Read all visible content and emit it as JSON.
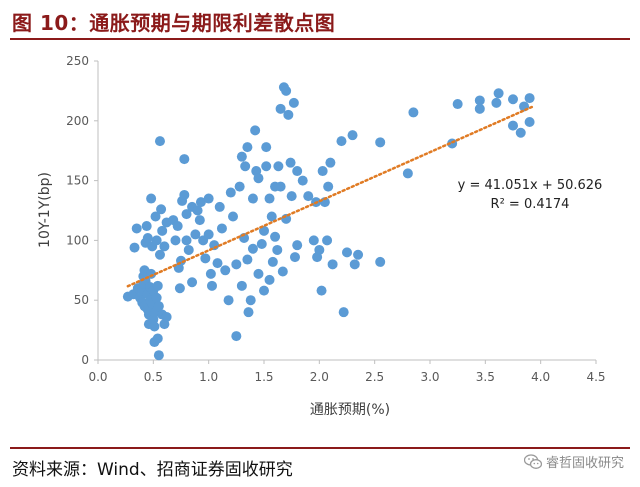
{
  "figure": {
    "title": "图 10：通胀预期与期限利差散点图",
    "source": "资料来源：Wind、招商证券固收研究",
    "watermark": "睿哲固收研究"
  },
  "colors": {
    "title": "#8b1a1a",
    "points": "#5b9bd5",
    "trendline": "#e07b24",
    "axis": "#bfbfbf"
  },
  "chart_data": {
    "type": "scatter",
    "xlabel": "通胀预期(%)",
    "ylabel": "10Y-1Y(bp)",
    "xlim": [
      0.0,
      4.5
    ],
    "ylim": [
      0,
      250
    ],
    "xticks": [
      0.0,
      0.5,
      1.0,
      1.5,
      2.0,
      2.5,
      3.0,
      3.5,
      4.0,
      4.5
    ],
    "yticks": [
      0,
      50,
      100,
      150,
      200,
      250
    ],
    "xtick_labels": [
      "0.0",
      "0.5",
      "1.0",
      "1.5",
      "2.0",
      "2.5",
      "3.0",
      "3.5",
      "4.0",
      "4.5"
    ],
    "ytick_labels": [
      "0",
      "50",
      "100",
      "150",
      "200",
      "250"
    ],
    "grid": false,
    "trendline": {
      "type": "linear",
      "slope": 41.051,
      "intercept": 50.626,
      "x_range": [
        0.27,
        3.92
      ],
      "equation_label": "y = 41.051x + 50.626",
      "r2_label": "R² = 0.4174"
    },
    "series": [
      {
        "points": [
          [
            0.27,
            53
          ],
          [
            0.32,
            55
          ],
          [
            0.33,
            94
          ],
          [
            0.35,
            110
          ],
          [
            0.36,
            60
          ],
          [
            0.38,
            52
          ],
          [
            0.4,
            48
          ],
          [
            0.4,
            58
          ],
          [
            0.41,
            64
          ],
          [
            0.41,
            70
          ],
          [
            0.42,
            75
          ],
          [
            0.42,
            45
          ],
          [
            0.43,
            66
          ],
          [
            0.43,
            98
          ],
          [
            0.44,
            112
          ],
          [
            0.45,
            102
          ],
          [
            0.45,
            55
          ],
          [
            0.45,
            42
          ],
          [
            0.46,
            38
          ],
          [
            0.46,
            30
          ],
          [
            0.47,
            50
          ],
          [
            0.47,
            61
          ],
          [
            0.48,
            72
          ],
          [
            0.48,
            135
          ],
          [
            0.49,
            95
          ],
          [
            0.49,
            47
          ],
          [
            0.5,
            34
          ],
          [
            0.5,
            58
          ],
          [
            0.51,
            15
          ],
          [
            0.51,
            28
          ],
          [
            0.52,
            40
          ],
          [
            0.52,
            120
          ],
          [
            0.53,
            100
          ],
          [
            0.53,
            52
          ],
          [
            0.54,
            62
          ],
          [
            0.54,
            18
          ],
          [
            0.55,
            4
          ],
          [
            0.55,
            45
          ],
          [
            0.56,
            88
          ],
          [
            0.56,
            183
          ],
          [
            0.57,
            126
          ],
          [
            0.58,
            108
          ],
          [
            0.58,
            38
          ],
          [
            0.6,
            30
          ],
          [
            0.6,
            95
          ],
          [
            0.62,
            115
          ],
          [
            0.62,
            36
          ],
          [
            0.7,
            100
          ],
          [
            0.68,
            117
          ],
          [
            0.72,
            112
          ],
          [
            0.73,
            77
          ],
          [
            0.74,
            60
          ],
          [
            0.75,
            83
          ],
          [
            0.76,
            133
          ],
          [
            0.78,
            138
          ],
          [
            0.78,
            168
          ],
          [
            0.8,
            122
          ],
          [
            0.8,
            100
          ],
          [
            0.82,
            92
          ],
          [
            0.85,
            128
          ],
          [
            0.85,
            65
          ],
          [
            0.88,
            105
          ],
          [
            0.9,
            125
          ],
          [
            0.92,
            117
          ],
          [
            0.93,
            132
          ],
          [
            0.95,
            100
          ],
          [
            0.97,
            85
          ],
          [
            1.0,
            135
          ],
          [
            1.0,
            105
          ],
          [
            1.02,
            72
          ],
          [
            1.03,
            62
          ],
          [
            1.05,
            96
          ],
          [
            1.08,
            81
          ],
          [
            1.1,
            128
          ],
          [
            1.12,
            110
          ],
          [
            1.15,
            75
          ],
          [
            1.18,
            50
          ],
          [
            1.2,
            140
          ],
          [
            1.22,
            120
          ],
          [
            1.25,
            80
          ],
          [
            1.25,
            20
          ],
          [
            1.28,
            145
          ],
          [
            1.3,
            170
          ],
          [
            1.3,
            62
          ],
          [
            1.32,
            102
          ],
          [
            1.33,
            162
          ],
          [
            1.35,
            178
          ],
          [
            1.35,
            84
          ],
          [
            1.36,
            40
          ],
          [
            1.38,
            50
          ],
          [
            1.4,
            135
          ],
          [
            1.4,
            93
          ],
          [
            1.42,
            192
          ],
          [
            1.43,
            158
          ],
          [
            1.45,
            72
          ],
          [
            1.45,
            152
          ],
          [
            1.48,
            97
          ],
          [
            1.5,
            108
          ],
          [
            1.5,
            58
          ],
          [
            1.52,
            178
          ],
          [
            1.52,
            162
          ],
          [
            1.55,
            135
          ],
          [
            1.55,
            67
          ],
          [
            1.57,
            120
          ],
          [
            1.58,
            82
          ],
          [
            1.6,
            145
          ],
          [
            1.6,
            103
          ],
          [
            1.62,
            92
          ],
          [
            1.63,
            162
          ],
          [
            1.65,
            145
          ],
          [
            1.65,
            210
          ],
          [
            1.67,
            74
          ],
          [
            1.68,
            228
          ],
          [
            1.7,
            225
          ],
          [
            1.7,
            118
          ],
          [
            1.72,
            205
          ],
          [
            1.74,
            165
          ],
          [
            1.75,
            137
          ],
          [
            1.77,
            215
          ],
          [
            1.78,
            86
          ],
          [
            1.8,
            158
          ],
          [
            1.8,
            96
          ],
          [
            1.85,
            150
          ],
          [
            1.9,
            137
          ],
          [
            1.95,
            100
          ],
          [
            1.97,
            132
          ],
          [
            1.98,
            86
          ],
          [
            2.0,
            92
          ],
          [
            2.02,
            58
          ],
          [
            2.03,
            158
          ],
          [
            2.05,
            132
          ],
          [
            2.07,
            100
          ],
          [
            2.08,
            145
          ],
          [
            2.1,
            165
          ],
          [
            2.12,
            80
          ],
          [
            2.2,
            183
          ],
          [
            2.22,
            40
          ],
          [
            2.25,
            90
          ],
          [
            2.3,
            188
          ],
          [
            2.32,
            80
          ],
          [
            2.35,
            88
          ],
          [
            2.55,
            182
          ],
          [
            2.55,
            82
          ],
          [
            2.8,
            156
          ],
          [
            2.85,
            207
          ],
          [
            3.2,
            181
          ],
          [
            3.25,
            214
          ],
          [
            3.45,
            217
          ],
          [
            3.45,
            210
          ],
          [
            3.6,
            215
          ],
          [
            3.62,
            223
          ],
          [
            3.75,
            218
          ],
          [
            3.75,
            196
          ],
          [
            3.82,
            190
          ],
          [
            3.85,
            212
          ],
          [
            3.9,
            219
          ],
          [
            3.9,
            199
          ]
        ]
      }
    ]
  }
}
